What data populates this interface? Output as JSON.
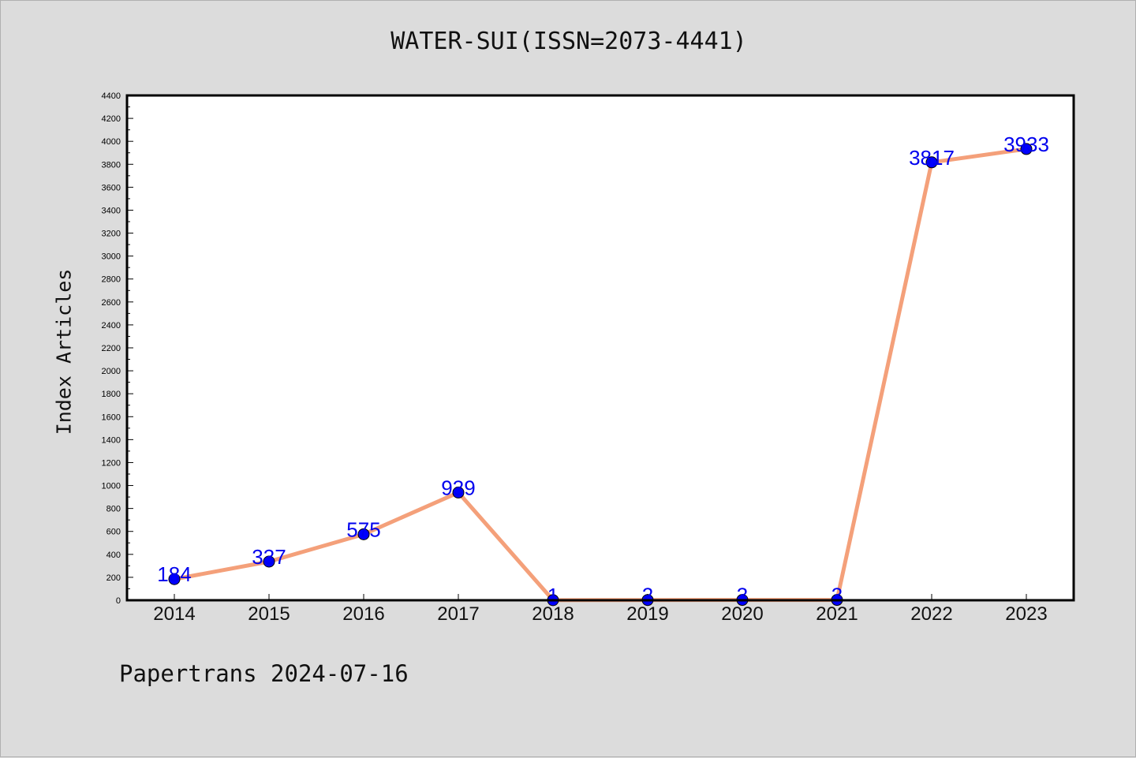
{
  "chart_data": {
    "type": "line",
    "title": "WATER-SUI(ISSN=2073-4441)",
    "xlabel": "",
    "ylabel": "Index Articles",
    "categories": [
      "2014",
      "2015",
      "2016",
      "2017",
      "2018",
      "2019",
      "2020",
      "2021",
      "2022",
      "2023"
    ],
    "series": [
      {
        "values": [
          184,
          337,
          575,
          939,
          1,
          2,
          3,
          3,
          3817,
          3933
        ]
      }
    ],
    "data_labels": [
      "184",
      "337",
      "575",
      "939",
      "1",
      "2",
      "3",
      "3",
      "3817",
      "3933"
    ],
    "ylim": [
      0,
      4400
    ],
    "y_ticks": [
      0,
      200,
      400,
      600,
      800,
      1000,
      1200,
      1400,
      1600,
      1800,
      2000,
      2200,
      2400,
      2600,
      2800,
      3000,
      3200,
      3400,
      3600,
      3800,
      4000,
      4200,
      4400
    ],
    "grid": false,
    "colors": {
      "line": "#f4a07a",
      "marker": "#0000ff",
      "label": "#0000ee"
    }
  },
  "footer": "Papertrans 2024-07-16"
}
